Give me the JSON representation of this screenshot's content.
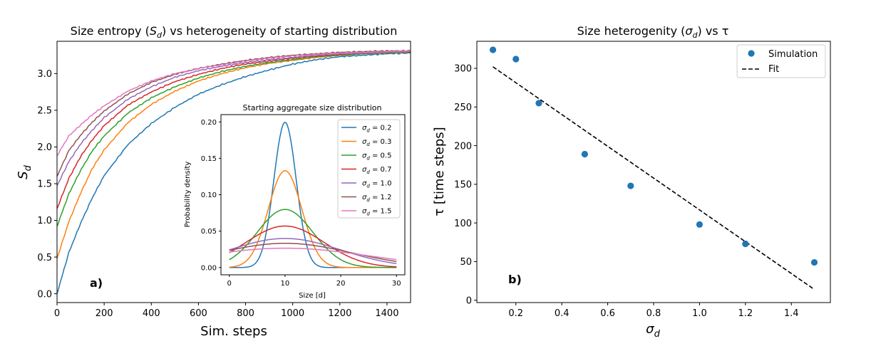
{
  "figure": {
    "panel_labels": [
      "a)",
      "b)"
    ]
  },
  "chart_data": [
    {
      "id": "entropy",
      "type": "line",
      "title": "Size entropy (S_d) vs heterogeneity of starting distribution",
      "title_parts": [
        "Size entropy (",
        "S",
        "d",
        ") vs heterogeneity of starting distribution"
      ],
      "xlabel": "Sim. steps",
      "ylabel_parts": [
        "S",
        "d"
      ],
      "xlim": [
        0,
        1500
      ],
      "ylim": [
        -0.12,
        3.44
      ],
      "xticks": [
        0,
        200,
        400,
        600,
        800,
        1000,
        1200,
        1400
      ],
      "yticks": [
        0.0,
        0.5,
        1.0,
        1.5,
        2.0,
        2.5,
        3.0
      ],
      "ytick_labels": [
        "0.0",
        "0.5",
        "1.0",
        "1.5",
        "2.0",
        "2.5",
        "3.0"
      ],
      "series": [
        {
          "name": "σd = 0.2",
          "color": "#1f77b4",
          "x": [
            0,
            50,
            100,
            150,
            200,
            300,
            400,
            500,
            600,
            700,
            800,
            900,
            1000,
            1100,
            1200,
            1300,
            1400,
            1500
          ],
          "y": [
            0.0,
            0.56,
            0.96,
            1.31,
            1.61,
            2.03,
            2.32,
            2.54,
            2.72,
            2.85,
            2.96,
            3.05,
            3.13,
            3.19,
            3.23,
            3.25,
            3.27,
            3.28
          ]
        },
        {
          "name": "σd = 0.3",
          "color": "#ff7f0e",
          "x": [
            0,
            50,
            100,
            150,
            200,
            300,
            400,
            500,
            600,
            700,
            800,
            900,
            1000,
            1100,
            1200,
            1300,
            1400,
            1500
          ],
          "y": [
            0.48,
            0.98,
            1.37,
            1.71,
            1.96,
            2.33,
            2.58,
            2.76,
            2.9,
            3.0,
            3.08,
            3.14,
            3.18,
            3.22,
            3.25,
            3.27,
            3.28,
            3.29
          ]
        },
        {
          "name": "σd = 0.5",
          "color": "#2ca02c",
          "x": [
            0,
            50,
            100,
            150,
            200,
            300,
            400,
            500,
            600,
            700,
            800,
            900,
            1000,
            1100,
            1200,
            1300,
            1400,
            1500
          ],
          "y": [
            0.92,
            1.36,
            1.68,
            1.95,
            2.15,
            2.46,
            2.67,
            2.82,
            2.94,
            3.03,
            3.1,
            3.15,
            3.19,
            3.23,
            3.25,
            3.27,
            3.28,
            3.29
          ]
        },
        {
          "name": "σd = 0.7",
          "color": "#d62728",
          "x": [
            0,
            50,
            100,
            150,
            200,
            300,
            400,
            500,
            600,
            700,
            800,
            900,
            1000,
            1100,
            1200,
            1300,
            1400,
            1500
          ],
          "y": [
            1.16,
            1.57,
            1.87,
            2.1,
            2.29,
            2.57,
            2.75,
            2.89,
            2.99,
            3.07,
            3.13,
            3.17,
            3.21,
            3.24,
            3.26,
            3.28,
            3.29,
            3.3
          ]
        },
        {
          "name": "σd = 1.0",
          "color": "#9467bd",
          "x": [
            0,
            50,
            100,
            150,
            200,
            300,
            400,
            500,
            600,
            700,
            800,
            900,
            1000,
            1100,
            1200,
            1300,
            1400,
            1500
          ],
          "y": [
            1.47,
            1.8,
            2.04,
            2.23,
            2.4,
            2.65,
            2.82,
            2.95,
            3.04,
            3.1,
            3.15,
            3.19,
            3.22,
            3.25,
            3.27,
            3.28,
            3.29,
            3.3
          ]
        },
        {
          "name": "σd = 1.2",
          "color": "#8c564b",
          "x": [
            0,
            50,
            100,
            150,
            200,
            300,
            400,
            500,
            600,
            700,
            800,
            900,
            1000,
            1100,
            1200,
            1300,
            1400,
            1500
          ],
          "y": [
            1.6,
            1.95,
            2.16,
            2.34,
            2.49,
            2.72,
            2.88,
            2.99,
            3.07,
            3.13,
            3.18,
            3.22,
            3.25,
            3.27,
            3.29,
            3.3,
            3.31,
            3.31
          ]
        },
        {
          "name": "σd = 1.5",
          "color": "#e377c2",
          "x": [
            0,
            50,
            100,
            150,
            200,
            300,
            400,
            500,
            600,
            700,
            800,
            900,
            1000,
            1100,
            1200,
            1300,
            1400,
            1500
          ],
          "y": [
            1.88,
            2.15,
            2.3,
            2.44,
            2.56,
            2.76,
            2.9,
            3.0,
            3.07,
            3.12,
            3.17,
            3.21,
            3.24,
            3.26,
            3.28,
            3.29,
            3.3,
            3.31
          ]
        }
      ]
    },
    {
      "id": "inset",
      "type": "line",
      "title": "Starting aggregate size distribution",
      "xlabel": "Size [d]",
      "ylabel": "Probability density",
      "xlim": [
        -1.5,
        31.5
      ],
      "ylim": [
        -0.01,
        0.21
      ],
      "xticks": [
        0,
        10,
        20,
        30
      ],
      "yticks": [
        0.0,
        0.05,
        0.1,
        0.15,
        0.2
      ],
      "ytick_labels": [
        "0.00",
        "0.05",
        "0.10",
        "0.15",
        "0.20"
      ],
      "curve": "gaussian",
      "mean": 10,
      "x_range": [
        0,
        30
      ],
      "series": [
        {
          "name": "σd = 0.2",
          "legend_sigma": "σ",
          "legend_sub": "d",
          "legend_value": " = 0.2",
          "sigma": 2.0,
          "color": "#1f77b4"
        },
        {
          "name": "σd = 0.3",
          "legend_sigma": "σ",
          "legend_sub": "d",
          "legend_value": " = 0.3",
          "sigma": 3.0,
          "color": "#ff7f0e"
        },
        {
          "name": "σd = 0.5",
          "legend_sigma": "σ",
          "legend_sub": "d",
          "legend_value": " = 0.5",
          "sigma": 5.0,
          "color": "#2ca02c"
        },
        {
          "name": "σd = 0.7",
          "legend_sigma": "σ",
          "legend_sub": "d",
          "legend_value": " = 0.7",
          "sigma": 7.0,
          "color": "#d62728"
        },
        {
          "name": "σd = 1.0",
          "legend_sigma": "σ",
          "legend_sub": "d",
          "legend_value": " = 1.0",
          "sigma": 10.0,
          "color": "#9467bd"
        },
        {
          "name": "σd = 1.2",
          "legend_sigma": "σ",
          "legend_sub": "d",
          "legend_value": " = 1.2",
          "sigma": 12.0,
          "color": "#8c564b"
        },
        {
          "name": "σd = 1.5",
          "legend_sigma": "σ",
          "legend_sub": "d",
          "legend_value": " = 1.5",
          "sigma": 15.0,
          "color": "#e377c2"
        }
      ]
    },
    {
      "id": "tau",
      "type": "scatter",
      "title": "Size heterogenity (σd) vs τ",
      "title_parts": [
        "Size heterogenity (",
        "σ",
        "d",
        ") vs τ"
      ],
      "xlabel_parts": [
        "σ",
        "d"
      ],
      "ylabel": "τ [time steps]",
      "xlim": [
        0.03,
        1.57
      ],
      "ylim": [
        -3,
        335
      ],
      "xticks": [
        0.2,
        0.4,
        0.6,
        0.8,
        1.0,
        1.2,
        1.4
      ],
      "xtick_labels": [
        "0.2",
        "0.4",
        "0.6",
        "0.8",
        "1.0",
        "1.2",
        "1.4"
      ],
      "yticks": [
        0,
        50,
        100,
        150,
        200,
        250,
        300
      ],
      "legend_location": "upper right",
      "series": [
        {
          "name": "Simulation",
          "kind": "scatter",
          "color": "#1f77b4",
          "x": [
            0.1,
            0.2,
            0.3,
            0.5,
            0.7,
            1.0,
            1.2,
            1.5
          ],
          "y": [
            324,
            312,
            255,
            189,
            148,
            98,
            73,
            49
          ]
        },
        {
          "name": "Fit",
          "kind": "dashed-line",
          "color": "#000000",
          "x": [
            0.1,
            1.5
          ],
          "y": [
            302,
            14
          ]
        }
      ]
    }
  ]
}
